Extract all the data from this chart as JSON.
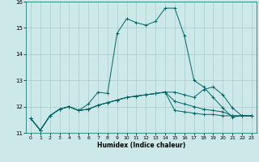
{
  "title": "",
  "xlabel": "Humidex (Indice chaleur)",
  "ylabel": "",
  "xlim": [
    -0.5,
    23.5
  ],
  "ylim": [
    11,
    16
  ],
  "yticks": [
    11,
    12,
    13,
    14,
    15,
    16
  ],
  "xticks": [
    0,
    1,
    2,
    3,
    4,
    5,
    6,
    7,
    8,
    9,
    10,
    11,
    12,
    13,
    14,
    15,
    16,
    17,
    18,
    19,
    20,
    21,
    22,
    23
  ],
  "background_color": "#cce8e8",
  "grid_color": "#aacccc",
  "line_color": "#006666",
  "lines": [
    [
      11.55,
      11.1,
      11.65,
      11.9,
      12.0,
      11.85,
      12.1,
      12.55,
      12.5,
      14.8,
      15.35,
      15.2,
      15.1,
      15.25,
      15.75,
      15.75,
      14.7,
      13.0,
      12.75,
      12.35,
      11.95,
      11.6,
      11.65,
      11.65
    ],
    [
      11.55,
      11.1,
      11.65,
      11.9,
      12.0,
      11.85,
      11.9,
      12.05,
      12.15,
      12.25,
      12.35,
      12.4,
      12.45,
      12.5,
      12.55,
      12.55,
      12.45,
      12.35,
      12.65,
      12.75,
      12.45,
      11.95,
      11.65,
      11.65
    ],
    [
      11.55,
      11.1,
      11.65,
      11.9,
      12.0,
      11.85,
      11.9,
      12.05,
      12.15,
      12.25,
      12.35,
      12.4,
      12.45,
      12.5,
      12.55,
      12.2,
      12.1,
      12.0,
      11.9,
      11.85,
      11.8,
      11.65,
      11.65,
      11.65
    ],
    [
      11.55,
      11.1,
      11.65,
      11.9,
      12.0,
      11.85,
      11.9,
      12.05,
      12.15,
      12.25,
      12.35,
      12.4,
      12.45,
      12.5,
      12.55,
      11.85,
      11.8,
      11.75,
      11.7,
      11.7,
      11.65,
      11.65,
      11.65,
      11.65
    ]
  ]
}
